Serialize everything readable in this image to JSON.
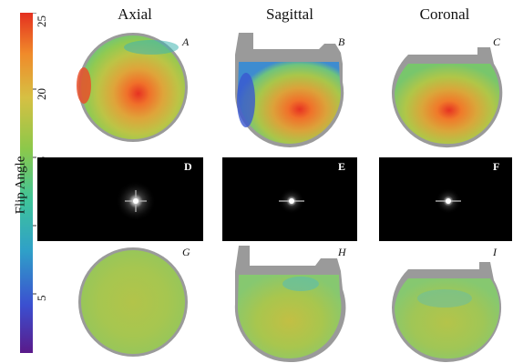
{
  "colorbar": {
    "label": "Flip Angle",
    "ticks": [
      {
        "value": 25,
        "label": "25"
      },
      {
        "value": 20,
        "label": "20"
      },
      {
        "value": 15,
        "label": "15"
      },
      {
        "value": 10,
        "label": "10"
      },
      {
        "value": 5,
        "label": "5"
      }
    ],
    "range": [
      0,
      25
    ],
    "stops": [
      "#5a1a8a",
      "#3b4fd0",
      "#2fa0c8",
      "#3fc49a",
      "#8cc84a",
      "#d6c043",
      "#f08a2a",
      "#e43020"
    ]
  },
  "columns": [
    {
      "title": "Axial"
    },
    {
      "title": "Sagittal"
    },
    {
      "title": "Coronal"
    }
  ],
  "panels": [
    {
      "letter": "A",
      "kind": "map"
    },
    {
      "letter": "B",
      "kind": "map"
    },
    {
      "letter": "C",
      "kind": "map"
    },
    {
      "letter": "D",
      "kind": "psf"
    },
    {
      "letter": "E",
      "kind": "psf"
    },
    {
      "letter": "F",
      "kind": "psf"
    },
    {
      "letter": "G",
      "kind": "map"
    },
    {
      "letter": "H",
      "kind": "map"
    },
    {
      "letter": "I",
      "kind": "map"
    }
  ],
  "colors": {
    "mask": "#9a9a9a",
    "background": "#000000"
  }
}
